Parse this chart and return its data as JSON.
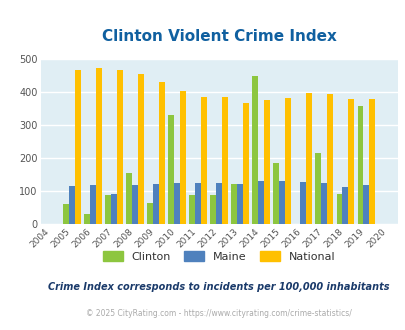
{
  "title": "Clinton Violent Crime Index",
  "years": [
    2004,
    2005,
    2006,
    2007,
    2008,
    2009,
    2010,
    2011,
    2012,
    2013,
    2014,
    2015,
    2016,
    2017,
    2018,
    2019,
    2020
  ],
  "clinton": [
    null,
    62,
    33,
    90,
    155,
    64,
    332,
    88,
    88,
    122,
    449,
    185,
    null,
    215,
    93,
    360,
    null
  ],
  "maine": [
    null,
    115,
    119,
    91,
    119,
    122,
    125,
    125,
    125,
    122,
    131,
    131,
    128,
    126,
    113,
    118,
    null
  ],
  "national": [
    null,
    469,
    474,
    467,
    455,
    432,
    405,
    387,
    387,
    368,
    376,
    383,
    398,
    394,
    380,
    379,
    null
  ],
  "clinton_color": "#8dc63f",
  "maine_color": "#4f81bd",
  "national_color": "#ffc000",
  "bg_color": "#e0eef4",
  "grid_color": "#ffffff",
  "title_color": "#1060a0",
  "subtitle_color": "#1a3a6a",
  "footer_color": "#aaaaaa",
  "yticks": [
    0,
    100,
    200,
    300,
    400,
    500
  ],
  "subtitle": "Crime Index corresponds to incidents per 100,000 inhabitants",
  "footer": "© 2025 CityRating.com - https://www.cityrating.com/crime-statistics/",
  "legend_labels": [
    "Clinton",
    "Maine",
    "National"
  ]
}
